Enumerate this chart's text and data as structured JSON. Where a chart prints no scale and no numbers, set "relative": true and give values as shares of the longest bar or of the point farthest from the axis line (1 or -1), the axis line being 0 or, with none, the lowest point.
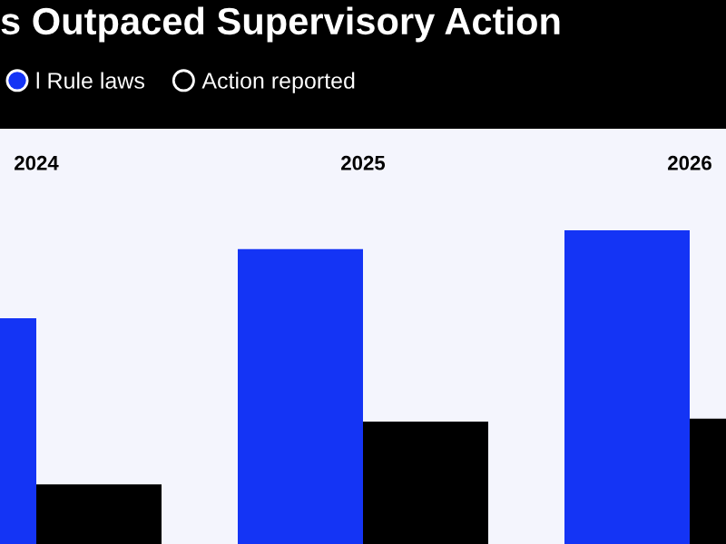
{
  "chart_data": {
    "type": "bar",
    "title": "s Outpaced Supervisory Action",
    "relative": true,
    "categories": [
      "2024",
      "2025",
      "2026"
    ],
    "series": [
      {
        "name": "l Rule laws",
        "color": "#1434f5",
        "values": [
          0.72,
          0.94,
          1.0
        ]
      },
      {
        "name": "Action reported",
        "color": "#000000",
        "values": [
          0.19,
          0.39,
          0.4
        ]
      }
    ],
    "legend": "top left"
  }
}
